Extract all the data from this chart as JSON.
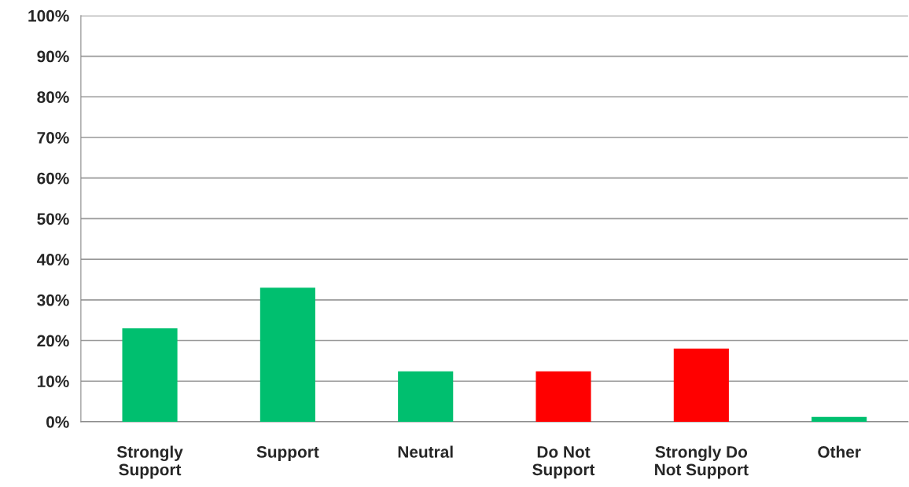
{
  "chart_data": {
    "type": "bar",
    "categories": [
      "Strongly\nSupport",
      "Support",
      "Neutral",
      "Do Not\nSupport",
      "Strongly Do\nNot Support",
      "Other"
    ],
    "values": [
      23,
      33,
      12.4,
      12.4,
      18,
      1.2
    ],
    "colors": [
      "#00bf6f",
      "#00bf6f",
      "#00bf6f",
      "#ff0000",
      "#ff0000",
      "#00bf6f"
    ],
    "ylim": [
      0,
      100
    ],
    "yticks": [
      {
        "value": 0,
        "label": "0%"
      },
      {
        "value": 10,
        "label": "10%"
      },
      {
        "value": 20,
        "label": "20%"
      },
      {
        "value": 30,
        "label": "30%"
      },
      {
        "value": 40,
        "label": "40%"
      },
      {
        "value": 50,
        "label": "50%"
      },
      {
        "value": 60,
        "label": "60%"
      },
      {
        "value": 70,
        "label": "70%"
      },
      {
        "value": 80,
        "label": "80%"
      },
      {
        "value": 90,
        "label": "90%"
      },
      {
        "value": 100,
        "label": "100%"
      }
    ],
    "grid": "y",
    "legend": false
  }
}
